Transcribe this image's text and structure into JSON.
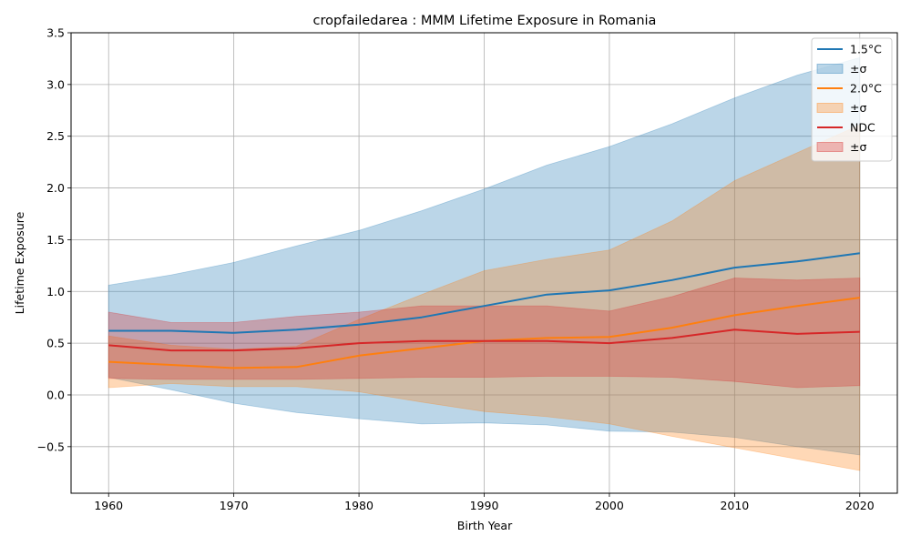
{
  "chart_data": {
    "type": "line",
    "title": "cropfailedarea : MMM Lifetime Exposure in Romania",
    "xlabel": "Birth Year",
    "ylabel": "Lifetime Exposure",
    "xlim": [
      1957.0,
      2023.0
    ],
    "ylim": [
      -0.95,
      3.5
    ],
    "xticks": [
      1960,
      1970,
      1980,
      1990,
      2000,
      2010,
      2020
    ],
    "yticks": [
      -0.5,
      0.0,
      0.5,
      1.0,
      1.5,
      2.0,
      2.5,
      3.0,
      3.5
    ],
    "ytick_labels": [
      "−0.5",
      "0.0",
      "0.5",
      "1.0",
      "1.5",
      "2.0",
      "2.5",
      "3.0",
      "3.5"
    ],
    "grid": true,
    "legend_position": "top-right",
    "x": [
      1960,
      1965,
      1970,
      1975,
      1980,
      1985,
      1990,
      1995,
      2000,
      2005,
      2010,
      2015,
      2020
    ],
    "series": [
      {
        "name": "1.5°C",
        "band_label": "±σ",
        "color": "#1f77b4",
        "values": [
          0.62,
          0.62,
          0.6,
          0.63,
          0.68,
          0.75,
          0.86,
          0.97,
          1.01,
          1.11,
          1.23,
          1.29,
          1.37
        ],
        "lower": [
          0.17,
          0.05,
          -0.08,
          -0.17,
          -0.23,
          -0.28,
          -0.27,
          -0.29,
          -0.35,
          -0.36,
          -0.41,
          -0.5,
          -0.58
        ],
        "upper": [
          1.06,
          1.16,
          1.28,
          1.44,
          1.59,
          1.78,
          1.99,
          2.22,
          2.4,
          2.62,
          2.87,
          3.09,
          3.26
        ]
      },
      {
        "name": "2.0°C",
        "band_label": "±σ",
        "color": "#ff7f0e",
        "values": [
          0.32,
          0.29,
          0.26,
          0.27,
          0.38,
          0.45,
          0.52,
          0.55,
          0.56,
          0.65,
          0.77,
          0.86,
          0.94
        ],
        "lower": [
          0.07,
          0.11,
          0.08,
          0.08,
          0.03,
          -0.07,
          -0.16,
          -0.21,
          -0.28,
          -0.4,
          -0.51,
          -0.62,
          -0.73
        ],
        "upper": [
          0.57,
          0.48,
          0.44,
          0.47,
          0.73,
          0.97,
          1.2,
          1.31,
          1.4,
          1.68,
          2.07,
          2.34,
          2.61
        ]
      },
      {
        "name": "NDC",
        "band_label": "±σ",
        "color": "#d62728",
        "values": [
          0.48,
          0.43,
          0.43,
          0.45,
          0.5,
          0.52,
          0.52,
          0.52,
          0.5,
          0.55,
          0.63,
          0.59,
          0.61
        ],
        "lower": [
          0.16,
          0.15,
          0.15,
          0.15,
          0.16,
          0.17,
          0.17,
          0.18,
          0.18,
          0.17,
          0.13,
          0.07,
          0.09
        ],
        "upper": [
          0.8,
          0.7,
          0.7,
          0.76,
          0.8,
          0.86,
          0.86,
          0.86,
          0.81,
          0.95,
          1.13,
          1.11,
          1.13
        ]
      }
    ]
  }
}
